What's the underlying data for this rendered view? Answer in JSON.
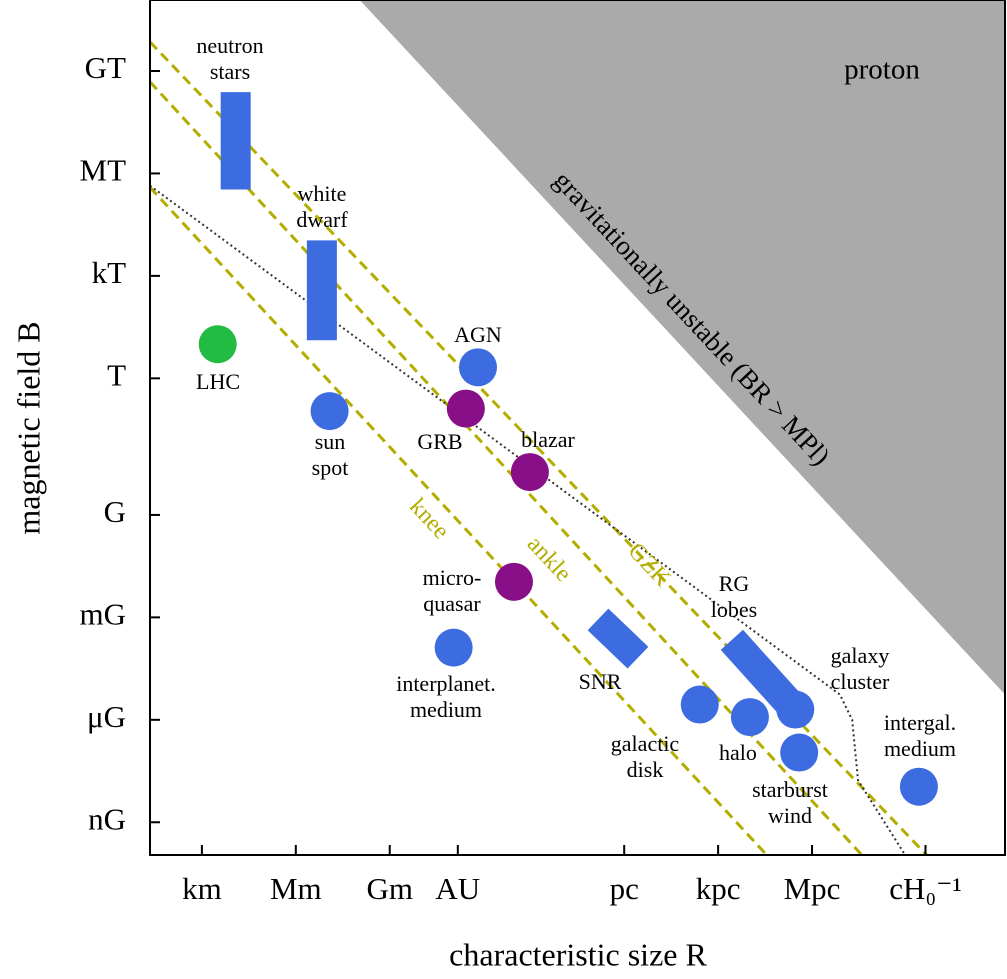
{
  "chart_data": {
    "type": "scatter",
    "xscale": "log",
    "yscale": "log",
    "xlabel": "characteristic size R",
    "ylabel": "magnetic field B",
    "xlim": [
      22,
      4.5e+28
    ],
    "ylim": [
      1.1e-14,
      120000000000.0
    ],
    "xticks": [
      {
        "value": 1000,
        "label": "km"
      },
      {
        "value": 1000000.0,
        "label": "Mm"
      },
      {
        "value": 1000000000.0,
        "label": "Gm"
      },
      {
        "value": 149600000000.0,
        "label": "AU"
      },
      {
        "value": 3.086e+16,
        "label": "pc"
      },
      {
        "value": 3.086e+19,
        "label": "kpc"
      },
      {
        "value": 3.086e+22,
        "label": "Mpc"
      },
      {
        "value": 1.3e+26,
        "label": "cH₀⁻¹"
      }
    ],
    "yticks": [
      {
        "value": 1e-13,
        "label": "nG"
      },
      {
        "value": 1e-10,
        "label": "μG"
      },
      {
        "value": 1e-07,
        "label": "mG"
      },
      {
        "value": 0.0001,
        "label": "G"
      },
      {
        "value": 1,
        "label": "T"
      },
      {
        "value": 1000,
        "label": "kT"
      },
      {
        "value": 1000000.0,
        "label": "MT"
      },
      {
        "value": 1000000000.0,
        "label": "GT"
      }
    ],
    "region": {
      "label": "gravitationally unstable (BR > MPl)",
      "color": "#aaaaaa",
      "x": [
        110000000.0,
        4.5e+28
      ],
      "y": [
        120000000000.0,
        5.5e-10
      ]
    },
    "region_note": "proton",
    "lines": [
      {
        "name": "knee",
        "color": "#b3ad00",
        "style": "dashed",
        "x": [
          22,
          1.1e+21
        ],
        "y": [
          390000.0,
          1.1e-14
        ]
      },
      {
        "name": "ankle",
        "color": "#b3ad00",
        "style": "dashed",
        "x": [
          22,
          1.2e+24
        ],
        "y": [
          480000000.0,
          1.1e-14
        ]
      },
      {
        "name": "GZK",
        "color": "#b3ad00",
        "style": "dashed",
        "x": [
          22,
          1.4e+26
        ],
        "y": [
          7100000000.0,
          1.1e-14
        ]
      },
      {
        "color": "#333333",
        "style": "dotted",
        "x": [
          22,
          2.4e+23,
          5.9e+23,
          9.1e+23,
          2.9e+25
        ],
        "y": [
          440000.0,
          5.5e-10,
          1e-10,
          1.7e-12,
          1.1e-14
        ]
      }
    ],
    "bars": [
      {
        "name": "neutron\nstars",
        "color": "#3d6be0",
        "x": [
          12000,
          12000
        ],
        "y": [
          340000.0,
          240000000.0
        ]
      },
      {
        "name": "white\ndwarf",
        "color": "#3d6be0",
        "x": [
          6800000.0,
          6800000.0
        ],
        "y": [
          13,
          11000
        ]
      },
      {
        "name": "SNR",
        "color": "#3d6be0",
        "x": [
          4500000000000000.0,
          8.5e+16
        ],
        "y": [
          8.7e-08,
          6.6e-09
        ]
      },
      {
        "name": "RG\nlobes",
        "color": "#3d6be0",
        "x": [
          8.5e+19,
          6.2e+21
        ],
        "y": [
          2.2e-08,
          2.8e-10
        ]
      }
    ],
    "points": [
      {
        "name": "LHC",
        "color": "#22bb44",
        "x": 3200,
        "y": 10
      },
      {
        "name": "AGN",
        "color": "#3d6be0",
        "x": 660000000000.0,
        "y": 2.1
      },
      {
        "name": "sun\nspot",
        "color": "#3d6be0",
        "x": 12000000.0,
        "y": 0.11
      },
      {
        "name": "GRB",
        "color": "#880f88",
        "x": 270000000000.0,
        "y": 0.13
      },
      {
        "name": "blazar",
        "color": "#880f88",
        "x": 30000000000000.0,
        "y": 0.0018
      },
      {
        "name": "micro-\nquasar",
        "color": "#880f88",
        "x": 9300000000000.0,
        "y": 1.1e-06
      },
      {
        "name": "interplanet.\nmedium",
        "color": "#3d6be0",
        "x": 110000000000.0,
        "y": 1.3e-08
      },
      {
        "name": "galactic\ndisk",
        "color": "#3d6be0",
        "x": 8e+18,
        "y": 2.8e-10
      },
      {
        "name": "halo",
        "color": "#3d6be0",
        "x": 3.2e+20,
        "y": 1.2e-10
      },
      {
        "name": "galaxy\ncluster",
        "color": "#3d6be0",
        "x": 9e+21,
        "y": 2e-10
      },
      {
        "name": "starburst\nwind",
        "color": "#3d6be0",
        "x": 1.2e+22,
        "y": 1.1e-11
      },
      {
        "name": "intergal.\nmedium",
        "color": "#3d6be0",
        "x": 8e+25,
        "y": 1.1e-12
      }
    ]
  }
}
